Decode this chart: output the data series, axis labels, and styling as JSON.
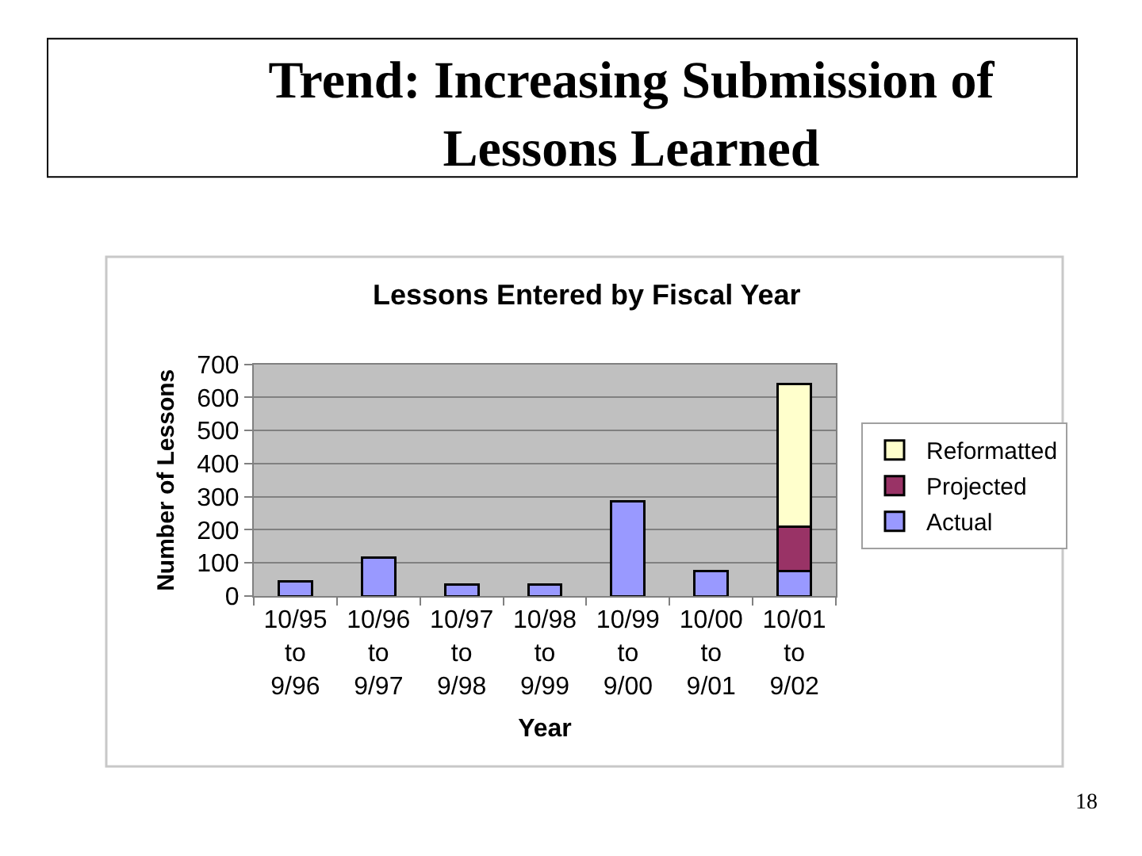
{
  "chart_data": {
    "type": "bar",
    "title": "Trend: Increasing Submission of\nLessons Learned",
    "subtitle": "Lessons Entered by Fiscal Year",
    "xlabel": "Year",
    "ylabel": "Number of Lessons",
    "categories": [
      "10/95\nto\n9/96",
      "10/96\nto\n9/97",
      "10/97\nto\n9/98",
      "10/98\nto\n9/99",
      "10/99\nto\n9/00",
      "10/00\nto\n9/01",
      "10/01\nto\n9/02"
    ],
    "series": [
      {
        "name": "Actual",
        "color": "#9999ff",
        "values": [
          45,
          115,
          35,
          35,
          285,
          75,
          75
        ]
      },
      {
        "name": "Projected",
        "color": "#993366",
        "values": [
          null,
          null,
          null,
          null,
          null,
          null,
          135
        ]
      },
      {
        "name": "Reformatted",
        "color": "#ffffcc",
        "values": [
          null,
          null,
          null,
          null,
          null,
          null,
          430
        ]
      }
    ],
    "stacked": true,
    "ylim": [
      0,
      700
    ],
    "yticks": [
      0,
      100,
      200,
      300,
      400,
      500,
      600,
      700
    ],
    "grid": "y",
    "legend": "right",
    "annotations": [
      "18"
    ]
  }
}
